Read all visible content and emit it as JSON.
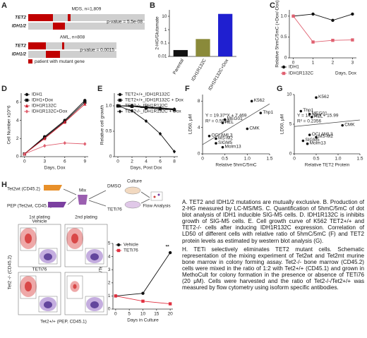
{
  "panel_labels": [
    "A",
    "B",
    "C",
    "D",
    "E",
    "F",
    "G",
    "H"
  ],
  "oncoprint": {
    "groups": [
      {
        "title": "MDS, n=1,809",
        "genes": [
          "TET2",
          "IDH1/2"
        ],
        "p_value": "p-value = 5.5e-08"
      },
      {
        "title": "AML, n=808",
        "genes": [
          "TET2",
          "IDH1/2"
        ],
        "p_value": "p-value = 0.0015"
      }
    ],
    "legend": "patient with mutant gene",
    "color": "#c00000"
  },
  "chart_data": [
    {
      "type": "bar",
      "ylabel": "2-HG/Glutamate",
      "categories": [
        "Parental",
        "IDH1R132C",
        "IDH1R132C+Dox"
      ],
      "values": [
        0.03,
        0.2,
        15
      ],
      "colors": [
        "#111111",
        "#8a8a3a",
        "#1f1fd0"
      ],
      "log_scale": true,
      "ylim": [
        0.01,
        30
      ],
      "yticks": [
        0.01,
        0.1,
        1,
        10
      ]
    },
    {
      "type": "line",
      "ylabel": "Relative 5hmC/5mC (+Dox/-Dox)",
      "xlabel": "Days, Dox",
      "x": [
        0,
        1,
        2,
        3
      ],
      "series": [
        {
          "name": "IDH1",
          "color": "#111111",
          "marker": "circle",
          "values": [
            1,
            1.05,
            0.9,
            1.05
          ]
        },
        {
          "name": "IDH1R132C",
          "color": "#e06070",
          "marker": "square",
          "values": [
            1,
            0.38,
            0.42,
            0.43
          ]
        }
      ],
      "xlim": [
        -0.2,
        3.2
      ],
      "xticks": [
        0,
        1,
        2,
        3
      ],
      "ylim": [
        0,
        1.15
      ],
      "yticks": [
        0,
        0.5,
        {
          "value": 1,
          "label": "1.0"
        }
      ],
      "legend": "below left"
    },
    {
      "type": "line",
      "ylabel": "Cell Number x10^6",
      "xlabel": "Days, Dox",
      "x": [
        0,
        3,
        6,
        9
      ],
      "series": [
        {
          "name": "IDH1",
          "color": "#111111",
          "marker": "circle",
          "values": [
            0.3,
            2.2,
            4.0,
            6.2
          ]
        },
        {
          "name": "IDH1+Dox",
          "color": "#111111",
          "marker": "square",
          "values": [
            0.3,
            2.1,
            3.9,
            6.0
          ]
        },
        {
          "name": "IDH1R132C",
          "color": "#d02030",
          "marker": "triangle",
          "values": [
            0.3,
            2.0,
            3.8,
            5.8
          ]
        },
        {
          "name": "IDH1R132C+Dox",
          "color": "#e06070",
          "marker": "diamond",
          "values": [
            0.3,
            1.2,
            1.5,
            1.4
          ]
        }
      ],
      "xlim": [
        -0.5,
        9.5
      ],
      "xticks": [
        0,
        3,
        6,
        9
      ],
      "ylim": [
        0,
        7
      ],
      "yticks": [
        0,
        2,
        4,
        6
      ],
      "legend": "upper left"
    },
    {
      "type": "line",
      "ylabel": "Relative cell growth",
      "xlabel": "Days, Post Dox",
      "x": [
        0,
        2,
        4,
        6,
        8
      ],
      "series": [
        {
          "name": "TET2+/+_IDH1R132C",
          "color": "#111111",
          "marker": "circle",
          "values": [
            1,
            1,
            0.97,
            0.95,
            0.93
          ]
        },
        {
          "name": "TET2+/+_IDH1R132C + Dox",
          "color": "#111111",
          "marker": "square",
          "values": [
            1,
            0.99,
            0.96,
            0.94,
            0.92
          ]
        },
        {
          "name": "TET2-/-_IDH1R132C",
          "color": "#111111",
          "marker": "triangle",
          "values": [
            1,
            1,
            0.98,
            0.96,
            0.94
          ]
        },
        {
          "name": "TET2-/-_IDH1R132C + Dox",
          "color": "#111111",
          "marker": "diamond",
          "values": [
            1,
            0.9,
            0.7,
            0.45,
            0.1
          ]
        }
      ],
      "xlim": [
        -0.5,
        8.5
      ],
      "xticks": [
        0,
        2,
        4,
        6,
        8
      ],
      "ylim": [
        0,
        1.25
      ],
      "yticks": [
        0,
        0.5,
        {
          "value": 1,
          "label": "1.0"
        }
      ],
      "legend": "upper left"
    },
    {
      "type": "scatter",
      "ylabel": "LD50, μM",
      "xlabel": "Relative 5hmC/5mC",
      "point_labels": [
        "K562",
        "Thp1",
        "MEG01",
        "HEL",
        "CMK",
        "OCI AML3",
        "MS-M2",
        "SIGM5",
        "Molm13"
      ],
      "x": [
        1.1,
        1.3,
        0.5,
        0.45,
        1.0,
        0.15,
        0.3,
        0.3,
        0.45
      ],
      "y": [
        8,
        6.2,
        5.2,
        4.7,
        3.8,
        2.7,
        2.3,
        1.6,
        1.0
      ],
      "annotations": [
        "Y = 19.37*X + 7.469",
        "R² = 0.5924"
      ],
      "xlim": [
        0,
        1.5
      ],
      "xticks": [
        0,
        0.5,
        {
          "value": 1,
          "label": "1.0"
        },
        1.5
      ],
      "ylim": [
        0,
        9
      ],
      "yticks": [
        0,
        4,
        8
      ],
      "color": "#111111"
    },
    {
      "type": "scatter",
      "ylabel": "LD50, μM",
      "xlabel": "Relative TET2 Protein",
      "point_labels": [
        "K562",
        "Thp1",
        "MEG01",
        "HEL",
        "CMK",
        "OCI AML3",
        "MS-M2",
        "SIGM5",
        "Molm13"
      ],
      "x": [
        0.5,
        0.15,
        0.35,
        0.4,
        1.1,
        0.35,
        0.5,
        0.2,
        0.3
      ],
      "y": [
        9.5,
        7.2,
        6.7,
        6.2,
        4.8,
        3.2,
        2.8,
        2.2,
        1.7
      ],
      "annotations": [
        "Y = 14.79*X + 15.99",
        "R² = 0.2356"
      ],
      "xlim": [
        0,
        1.5
      ],
      "xticks": [
        0,
        0.5,
        {
          "value": 1,
          "label": "1.0"
        },
        1.5
      ],
      "ylim": [
        0,
        10
      ],
      "yticks": [
        0,
        5,
        10
      ],
      "color": "#111111"
    },
    {
      "type": "line",
      "ylabel": "Ratio Tet2-/-/Tet2+/+",
      "xlabel": "Days in Culture",
      "x": [
        0,
        10,
        20
      ],
      "series": [
        {
          "name": "Vehicle",
          "color": "#111111",
          "marker": "circle",
          "values": [
            1.0,
            1.2,
            4.3
          ]
        },
        {
          "name": "TETi76",
          "color": "#e03040",
          "marker": "square",
          "values": [
            1.0,
            0.6,
            0.4
          ]
        }
      ],
      "annotations": [
        "**"
      ],
      "xlim": [
        -1,
        21
      ],
      "xticks": [
        0,
        5,
        10,
        15,
        20
      ],
      "ylim": [
        0,
        5
      ],
      "yticks": [
        0,
        1,
        2,
        3,
        4,
        5
      ],
      "legend": "upper left"
    }
  ],
  "schematic": {
    "donor_1": "Tet2wt (CD45.2)",
    "donor_2": "PEP (Tet2wt, CD45.1)",
    "mix": "Mix",
    "culture": "Culture",
    "treatment_1": "DMSO",
    "treatment_2": "TETi76",
    "readout": "Flow Analysis"
  },
  "flow": {
    "columns": [
      "1st plating",
      "2nd plating"
    ],
    "rows": [
      "Vehicle",
      "TETi76"
    ],
    "ylabel": "Tet2 -/- (CD45.2)",
    "xlabel": "Tet2+/+ (PEP, CD45.1)"
  },
  "caption": [
    "A. TET2 and IDH1/2 mutations are mutually exclusive. B. Production of 2-HG measured by LC-MS/MS. C. Quantification of 5hmC/5mC of dot blot analysis of IDH1 inducible SIG-M5 cells. D. IDH1R132C is inhibits growth of SIG-M5 cells. E. Cell growth curve of K562 TET2+/+ and TET2-/- cells after inducing IDH1R132C expression. Correlation of LD50 of different cells with relative ratio of 5hmC/5mC (F) and TET2 protein levels as estimated by western blot analysis (G).",
    "H. TETi selectively eliminates TET2 mutant cells. Schematic representation of the mixing experiment of Tet2wt and Tet2mt murine bone marrow in colony forming assay. Tet2-/- bone marrow (CD45.2) cells were mixed in the ratio of 1:2 with Tet2+/+ (CD45.1) and grown in MethoCult for colony formation in the presence or absence of TETi76 (20 μM). Cells were harvested and the ratio of Tet2-/-/Tet2+/+ was measured by flow cytometry using isoform specific antibodies."
  ]
}
